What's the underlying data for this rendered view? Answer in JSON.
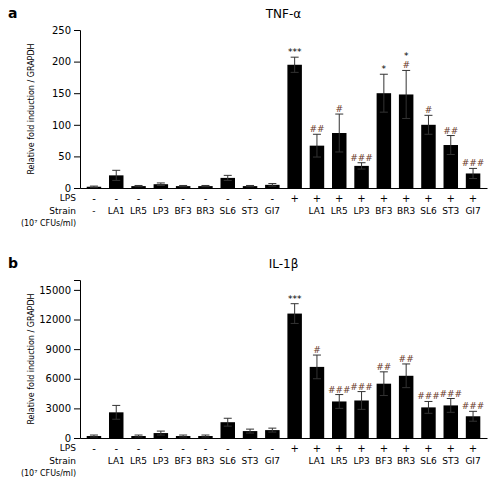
{
  "chart_data": [
    {
      "type": "bar",
      "panel_label": "a",
      "title": "TNF-α",
      "y_label": "Relative fold induction / GRAPDH",
      "ylim": [
        0,
        250
      ],
      "yticks": [
        0,
        50,
        100,
        150,
        200,
        250
      ],
      "color": "#000000",
      "categories": [
        "-",
        "LA1",
        "LR5",
        "LP3",
        "BF3",
        "BR3",
        "SL6",
        "ST3",
        "GI7",
        null,
        "LA1",
        "LR5",
        "LP3",
        "BF3",
        "BR3",
        "SL6",
        "ST3",
        "GI7"
      ],
      "lps_labels": [
        "-",
        "-",
        "-",
        "-",
        "-",
        "-",
        "-",
        "-",
        "-",
        "+",
        "+",
        "+",
        "+",
        "+",
        "+",
        "+",
        "+",
        "+"
      ],
      "row_labels": [
        "LPS",
        "Strain",
        "(10⁷ CFUs/ml)"
      ],
      "values": [
        2,
        20,
        3,
        6,
        3,
        3,
        16,
        3,
        5,
        195,
        67,
        87,
        35,
        150,
        148,
        100,
        68,
        23
      ],
      "errors": [
        1,
        8,
        1,
        2,
        1,
        1,
        4,
        1,
        2,
        12,
        18,
        30,
        5,
        30,
        38,
        15,
        15,
        8
      ],
      "significance": [
        null,
        null,
        null,
        null,
        null,
        null,
        null,
        null,
        null,
        [
          {
            "text": "***",
            "color": "#000000"
          }
        ],
        [
          {
            "text": "##",
            "color": "#6B3A2A"
          }
        ],
        [
          {
            "text": "#",
            "color": "#6B3A2A"
          }
        ],
        [
          {
            "text": "###",
            "color": "#6B3A2A"
          }
        ],
        [
          {
            "text": "*",
            "color": "#000000"
          }
        ],
        [
          {
            "text": "#",
            "color": "#6B3A2A"
          },
          {
            "text": "*",
            "color": "#000000"
          }
        ],
        [
          {
            "text": "#",
            "color": "#6B3A2A"
          }
        ],
        [
          {
            "text": "##",
            "color": "#6B3A2A"
          }
        ],
        [
          {
            "text": "###",
            "color": "#6B3A2A"
          }
        ]
      ]
    },
    {
      "type": "bar",
      "panel_label": "b",
      "title": "IL-1β",
      "y_label": "Relative fold induction / GRAPDH",
      "ylim": [
        0,
        16000
      ],
      "yticks": [
        0,
        3000,
        6000,
        9000,
        12000,
        15000
      ],
      "color": "#000000",
      "categories": [
        null,
        "LA1",
        "LR5",
        "LP3",
        "BF3",
        "BR3",
        "SL6",
        "ST3",
        "GI7",
        null,
        "LA1",
        "LR5",
        "LP3",
        "BF3",
        "BR3",
        "SL6",
        "ST3",
        "GI7"
      ],
      "lps_labels": [
        "-",
        "-",
        "-",
        "-",
        "-",
        "-",
        "-",
        "-",
        "-",
        "+",
        "+",
        "+",
        "+",
        "+",
        "+",
        "+",
        "+",
        "+"
      ],
      "row_labels": [
        "LPS",
        "Strain",
        "(10⁷ CFUs/ml)"
      ],
      "values": [
        200,
        2600,
        200,
        500,
        200,
        200,
        1600,
        700,
        800,
        12600,
        7200,
        3700,
        3800,
        5500,
        6300,
        3100,
        3300,
        2200
      ],
      "errors": [
        100,
        700,
        100,
        200,
        100,
        100,
        400,
        200,
        200,
        1000,
        1200,
        700,
        900,
        1200,
        1200,
        600,
        700,
        500
      ],
      "significance": [
        null,
        null,
        null,
        null,
        null,
        null,
        null,
        null,
        null,
        [
          {
            "text": "***",
            "color": "#000000"
          }
        ],
        [
          {
            "text": "#",
            "color": "#6B3A2A"
          }
        ],
        [
          {
            "text": "###",
            "color": "#6B3A2A"
          }
        ],
        [
          {
            "text": "###",
            "color": "#6B3A2A"
          }
        ],
        [
          {
            "text": "##",
            "color": "#6B3A2A"
          }
        ],
        [
          {
            "text": "##",
            "color": "#6B3A2A"
          }
        ],
        [
          {
            "text": "###",
            "color": "#6B3A2A"
          }
        ],
        [
          {
            "text": "###",
            "color": "#6B3A2A"
          }
        ],
        [
          {
            "text": "###",
            "color": "#6B3A2A"
          }
        ]
      ]
    }
  ]
}
